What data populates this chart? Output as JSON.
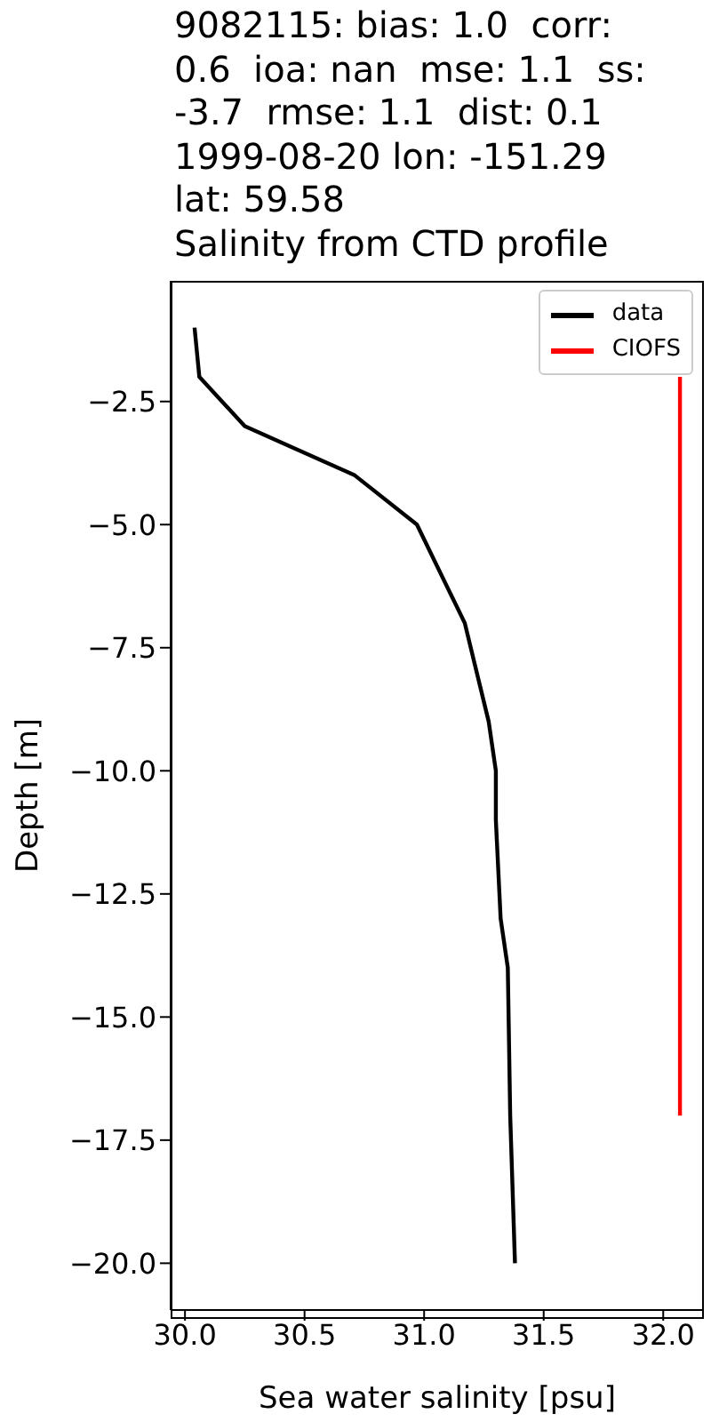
{
  "chart_data": {
    "type": "line",
    "title": "9082115: bias: 1.0  corr:\n0.6  ioa: nan  mse: 1.1  ss:\n-3.7  rmse: 1.1  dist: 0.1\n1999-08-20 lon: -151.29\nlat: 59.58\nSalinity from CTD profile",
    "xlabel": "Sea water salinity [psu]",
    "ylabel": "Depth [m]",
    "series": [
      {
        "name": "data",
        "color": "#000000",
        "x": [
          30.04,
          30.06,
          30.25,
          30.71,
          30.97,
          31.17,
          31.27,
          31.3,
          31.3,
          31.32,
          31.35,
          31.36,
          31.38
        ],
        "values": [
          -1,
          -2,
          -3,
          -4,
          -5,
          -7,
          -9,
          -10,
          -11,
          -13,
          -14,
          -17,
          -20
        ]
      },
      {
        "name": "CIOFS",
        "color": "#ff0000",
        "x": [
          32.07,
          32.07
        ],
        "values": [
          -2,
          -17
        ]
      }
    ],
    "xlim": [
      29.94,
      32.17
    ],
    "ylim": [
      -20.95,
      -0.05
    ],
    "xticks": [
      {
        "value": 30,
        "label": "30.0"
      },
      {
        "value": 30.5,
        "label": "30.5"
      },
      {
        "value": 31,
        "label": "31.0"
      },
      {
        "value": 31.5,
        "label": "31.5"
      },
      {
        "value": 32,
        "label": "32.0"
      }
    ],
    "yticks": [
      {
        "value": -2.5,
        "label": "−2.5"
      },
      {
        "value": -5,
        "label": "−5.0"
      },
      {
        "value": -7.5,
        "label": "−7.5"
      },
      {
        "value": -10,
        "label": "−10.0"
      },
      {
        "value": -12.5,
        "label": "−12.5"
      },
      {
        "value": -15,
        "label": "−15.0"
      },
      {
        "value": -17.5,
        "label": "−17.5"
      },
      {
        "value": -20,
        "label": "−20.0"
      }
    ],
    "grid": false,
    "legend": "top right",
    "marker": "none",
    "line_style": "solid"
  }
}
